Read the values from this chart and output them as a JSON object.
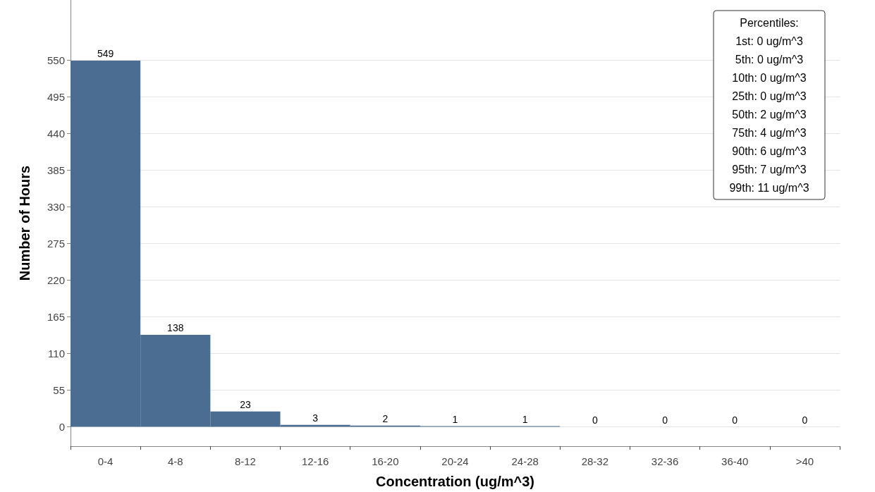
{
  "chart_data": {
    "type": "bar",
    "xlabel": "Concentration (ug/m^3)",
    "ylabel": "Number of Hours",
    "categories": [
      "0-4",
      "4-8",
      "8-12",
      "12-16",
      "16-20",
      "20-24",
      "24-28",
      "28-32",
      "32-36",
      "36-40",
      ">40"
    ],
    "values": [
      549,
      138,
      23,
      3,
      2,
      1,
      1,
      0,
      0,
      0,
      0
    ],
    "color": "#4a6d91",
    "ylim": [
      -29,
      640
    ],
    "yticks": [
      0,
      55,
      110,
      165,
      220,
      275,
      330,
      385,
      440,
      495,
      550
    ],
    "grid": "y",
    "data_labels": true,
    "annotations": [
      "Percentiles:",
      "1st: 0 ug/m^3",
      "5th: 0 ug/m^3",
      "10th: 0 ug/m^3",
      "25th: 0 ug/m^3",
      "50th: 2 ug/m^3",
      "75th: 4 ug/m^3",
      "90th: 6 ug/m^3",
      "95th: 7 ug/m^3",
      "99th: 11 ug/m^3"
    ]
  }
}
